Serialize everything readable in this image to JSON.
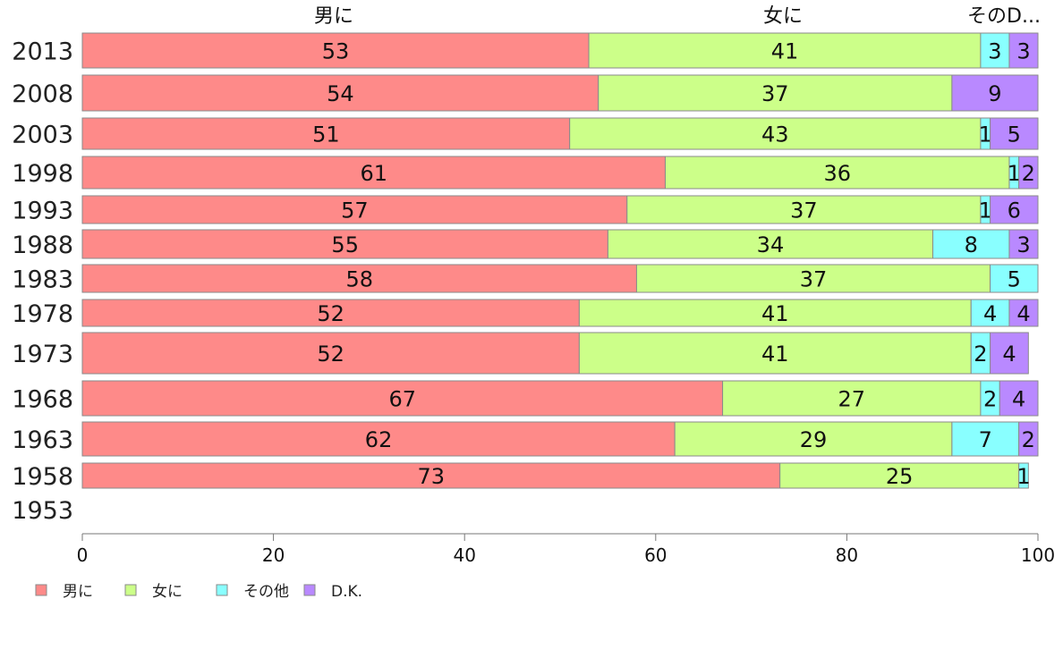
{
  "chart_data": {
    "type": "bar",
    "orientation": "horizontal",
    "stacked": true,
    "title": "",
    "xlabel": "",
    "ylabel": "",
    "xlim": [
      0,
      100
    ],
    "x_ticks": [
      "0",
      "20",
      "40",
      "60",
      "80",
      "100"
    ],
    "categories": [
      "2013",
      "2008",
      "2003",
      "1998",
      "1993",
      "1988",
      "1983",
      "1978",
      "1973",
      "1968",
      "1963",
      "1958",
      "1953"
    ],
    "column_headers": [
      "男に",
      "女に",
      "そのD..."
    ],
    "series": [
      {
        "name": "男に",
        "color": "#fe8a89",
        "values": [
          53,
          54,
          51,
          61,
          57,
          55,
          58,
          52,
          52,
          67,
          62,
          73,
          null
        ],
        "labels": [
          "53",
          "54",
          "51",
          "61",
          "57",
          "55",
          "58",
          "52",
          "52",
          "67",
          "62",
          "73",
          ""
        ]
      },
      {
        "name": "女に",
        "color": "#ccff89",
        "values": [
          41,
          37,
          43,
          36,
          37,
          34,
          37,
          41,
          41,
          27,
          29,
          25,
          null
        ],
        "labels": [
          "41",
          "37",
          "43",
          "36",
          "37",
          "34",
          "37",
          "41",
          "41",
          "27",
          "29",
          "25",
          ""
        ]
      },
      {
        "name": "その他",
        "color": "#89ffff",
        "values": [
          3,
          0,
          1,
          1,
          1,
          8,
          5,
          4,
          2,
          2,
          7,
          1,
          null
        ],
        "labels": [
          "3",
          "",
          "1",
          "1",
          "1",
          "8",
          "5",
          "4",
          "2",
          "2",
          "7",
          "1",
          ""
        ]
      },
      {
        "name": "D.K.",
        "color": "#b989ff",
        "values": [
          3,
          9,
          5,
          2,
          6,
          3,
          0,
          4,
          4,
          4,
          2,
          0,
          null
        ],
        "labels": [
          "3",
          "9",
          "5",
          "2",
          "6",
          "3",
          "",
          "4",
          "4",
          "4",
          "2",
          "",
          ""
        ]
      }
    ],
    "legend_position": "bottom-left",
    "grid": false
  }
}
